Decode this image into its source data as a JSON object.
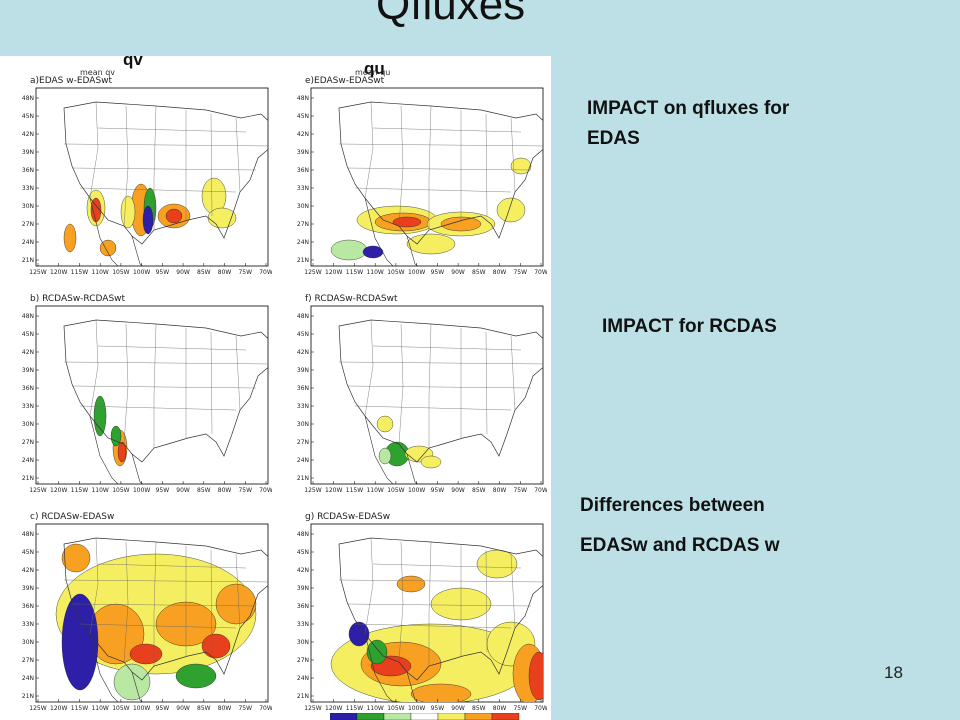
{
  "slide": {
    "title": "Qfluxes",
    "page_number": "18",
    "column_labels": [
      "qv",
      "qu"
    ]
  },
  "panels": [
    {
      "id": "a",
      "title": "a)EDAS w-EDASwt",
      "subtitle": "mean qv"
    },
    {
      "id": "e",
      "title": "e)EDASw-EDASwt",
      "subtitle": "mean qu"
    },
    {
      "id": "b",
      "title": "b) RCDASw-RCDASwt",
      "subtitle": ""
    },
    {
      "id": "f",
      "title": "f) RCDASw-RCDASwt",
      "subtitle": ""
    },
    {
      "id": "c",
      "title": "c) RCDASw-EDASw",
      "subtitle": ""
    },
    {
      "id": "g",
      "title": "g) RCDASw-EDASw",
      "subtitle": ""
    }
  ],
  "axes": {
    "lat_ticks": [
      "48N",
      "45N",
      "42N",
      "39N",
      "36N",
      "33N",
      "30N",
      "27N",
      "24N",
      "21N"
    ],
    "lon_ticks": [
      "125W",
      "120W",
      "115W",
      "110W",
      "105W",
      "100W",
      "95W",
      "90W",
      "85W",
      "80W",
      "75W",
      "70W"
    ]
  },
  "annotations": {
    "edas_line1": "IMPACT on qfluxes for",
    "edas_line2": "EDAS",
    "rcdas": "IMPACT for RCDAS",
    "diff_line1": "Differences between",
    "diff_line2": "EDASw and RCDAS w"
  },
  "colors": {
    "background": "#bde0e6",
    "positive_strong": "#e8401c",
    "positive_mid": "#f7a021",
    "positive_weak": "#f4ee60",
    "negative_weak": "#b9e8a2",
    "negative_mid": "#2fa12f",
    "negative_strong": "#2d1fa8"
  }
}
